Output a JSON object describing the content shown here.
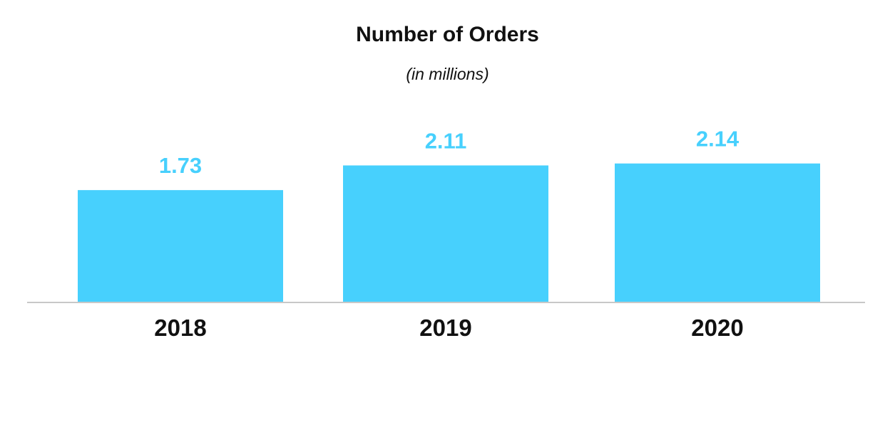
{
  "chart_data": {
    "type": "bar",
    "title": "Number of Orders",
    "subtitle": "(in millions)",
    "categories": [
      "2018",
      "2019",
      "2020"
    ],
    "values": [
      1.73,
      2.11,
      2.14
    ],
    "value_labels": [
      "1.73",
      "2.11",
      "2.14"
    ],
    "ylim": [
      0,
      2.4
    ],
    "grid": false,
    "legend": "none",
    "bar_color": "#47d0fd",
    "label_color": "#47d0fd",
    "axis_color": "#c8c8c8",
    "text_color": "#111111"
  }
}
